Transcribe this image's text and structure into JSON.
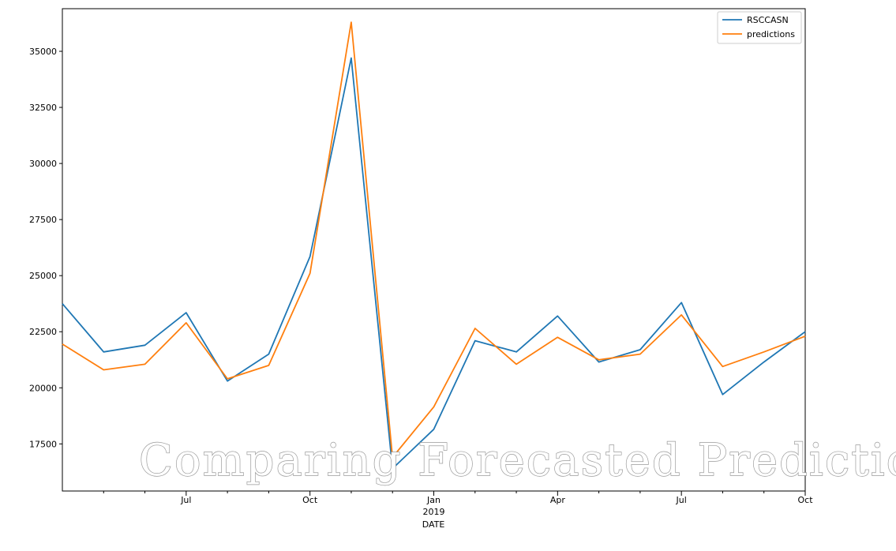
{
  "chart_data": {
    "type": "line",
    "xlabel": "DATE",
    "ylabel": "",
    "ylim": [
      15400,
      36900
    ],
    "xlim": [
      "2018-04",
      "2019-10"
    ],
    "grid": false,
    "legend_position": "top-right",
    "x": [
      "2018-04",
      "2018-05",
      "2018-06",
      "2018-07",
      "2018-08",
      "2018-09",
      "2018-10",
      "2018-11",
      "2018-12",
      "2019-01",
      "2019-02",
      "2019-03",
      "2019-04",
      "2019-05",
      "2019-06",
      "2019-07",
      "2019-08",
      "2019-09",
      "2019-10"
    ],
    "series": [
      {
        "name": "RSCCASN",
        "color": "#1f77b4",
        "values": [
          23750,
          21600,
          21900,
          23350,
          20300,
          21500,
          25850,
          34700,
          16400,
          18150,
          22100,
          21600,
          23200,
          21150,
          21700,
          23800,
          19700,
          21150,
          22500
        ]
      },
      {
        "name": "predictions",
        "color": "#ff7f0e",
        "values": [
          21950,
          20800,
          21050,
          22900,
          20400,
          21000,
          25100,
          36300,
          16900,
          19150,
          22650,
          21050,
          22250,
          21250,
          21500,
          23250,
          20950,
          21600,
          22300
        ]
      }
    ],
    "yticks": [
      17500,
      20000,
      22500,
      25000,
      27500,
      30000,
      32500,
      35000
    ],
    "xticks": [
      {
        "date": "2018-07",
        "label": "Jul",
        "sublabel": ""
      },
      {
        "date": "2018-10",
        "label": "Oct",
        "sublabel": ""
      },
      {
        "date": "2019-01",
        "label": "Jan",
        "sublabel": "2019"
      },
      {
        "date": "2019-04",
        "label": "Apr",
        "sublabel": ""
      },
      {
        "date": "2019-07",
        "label": "Jul",
        "sublabel": ""
      },
      {
        "date": "2019-10",
        "label": "Oct",
        "sublabel": ""
      }
    ],
    "minor_xticks": [
      "2018-05",
      "2018-06",
      "2018-08",
      "2018-09",
      "2018-11",
      "2018-12",
      "2019-02",
      "2019-03",
      "2019-05",
      "2019-06",
      "2019-08",
      "2019-09"
    ]
  },
  "overlay": {
    "title": "Comparing Forecasted Predictions"
  }
}
